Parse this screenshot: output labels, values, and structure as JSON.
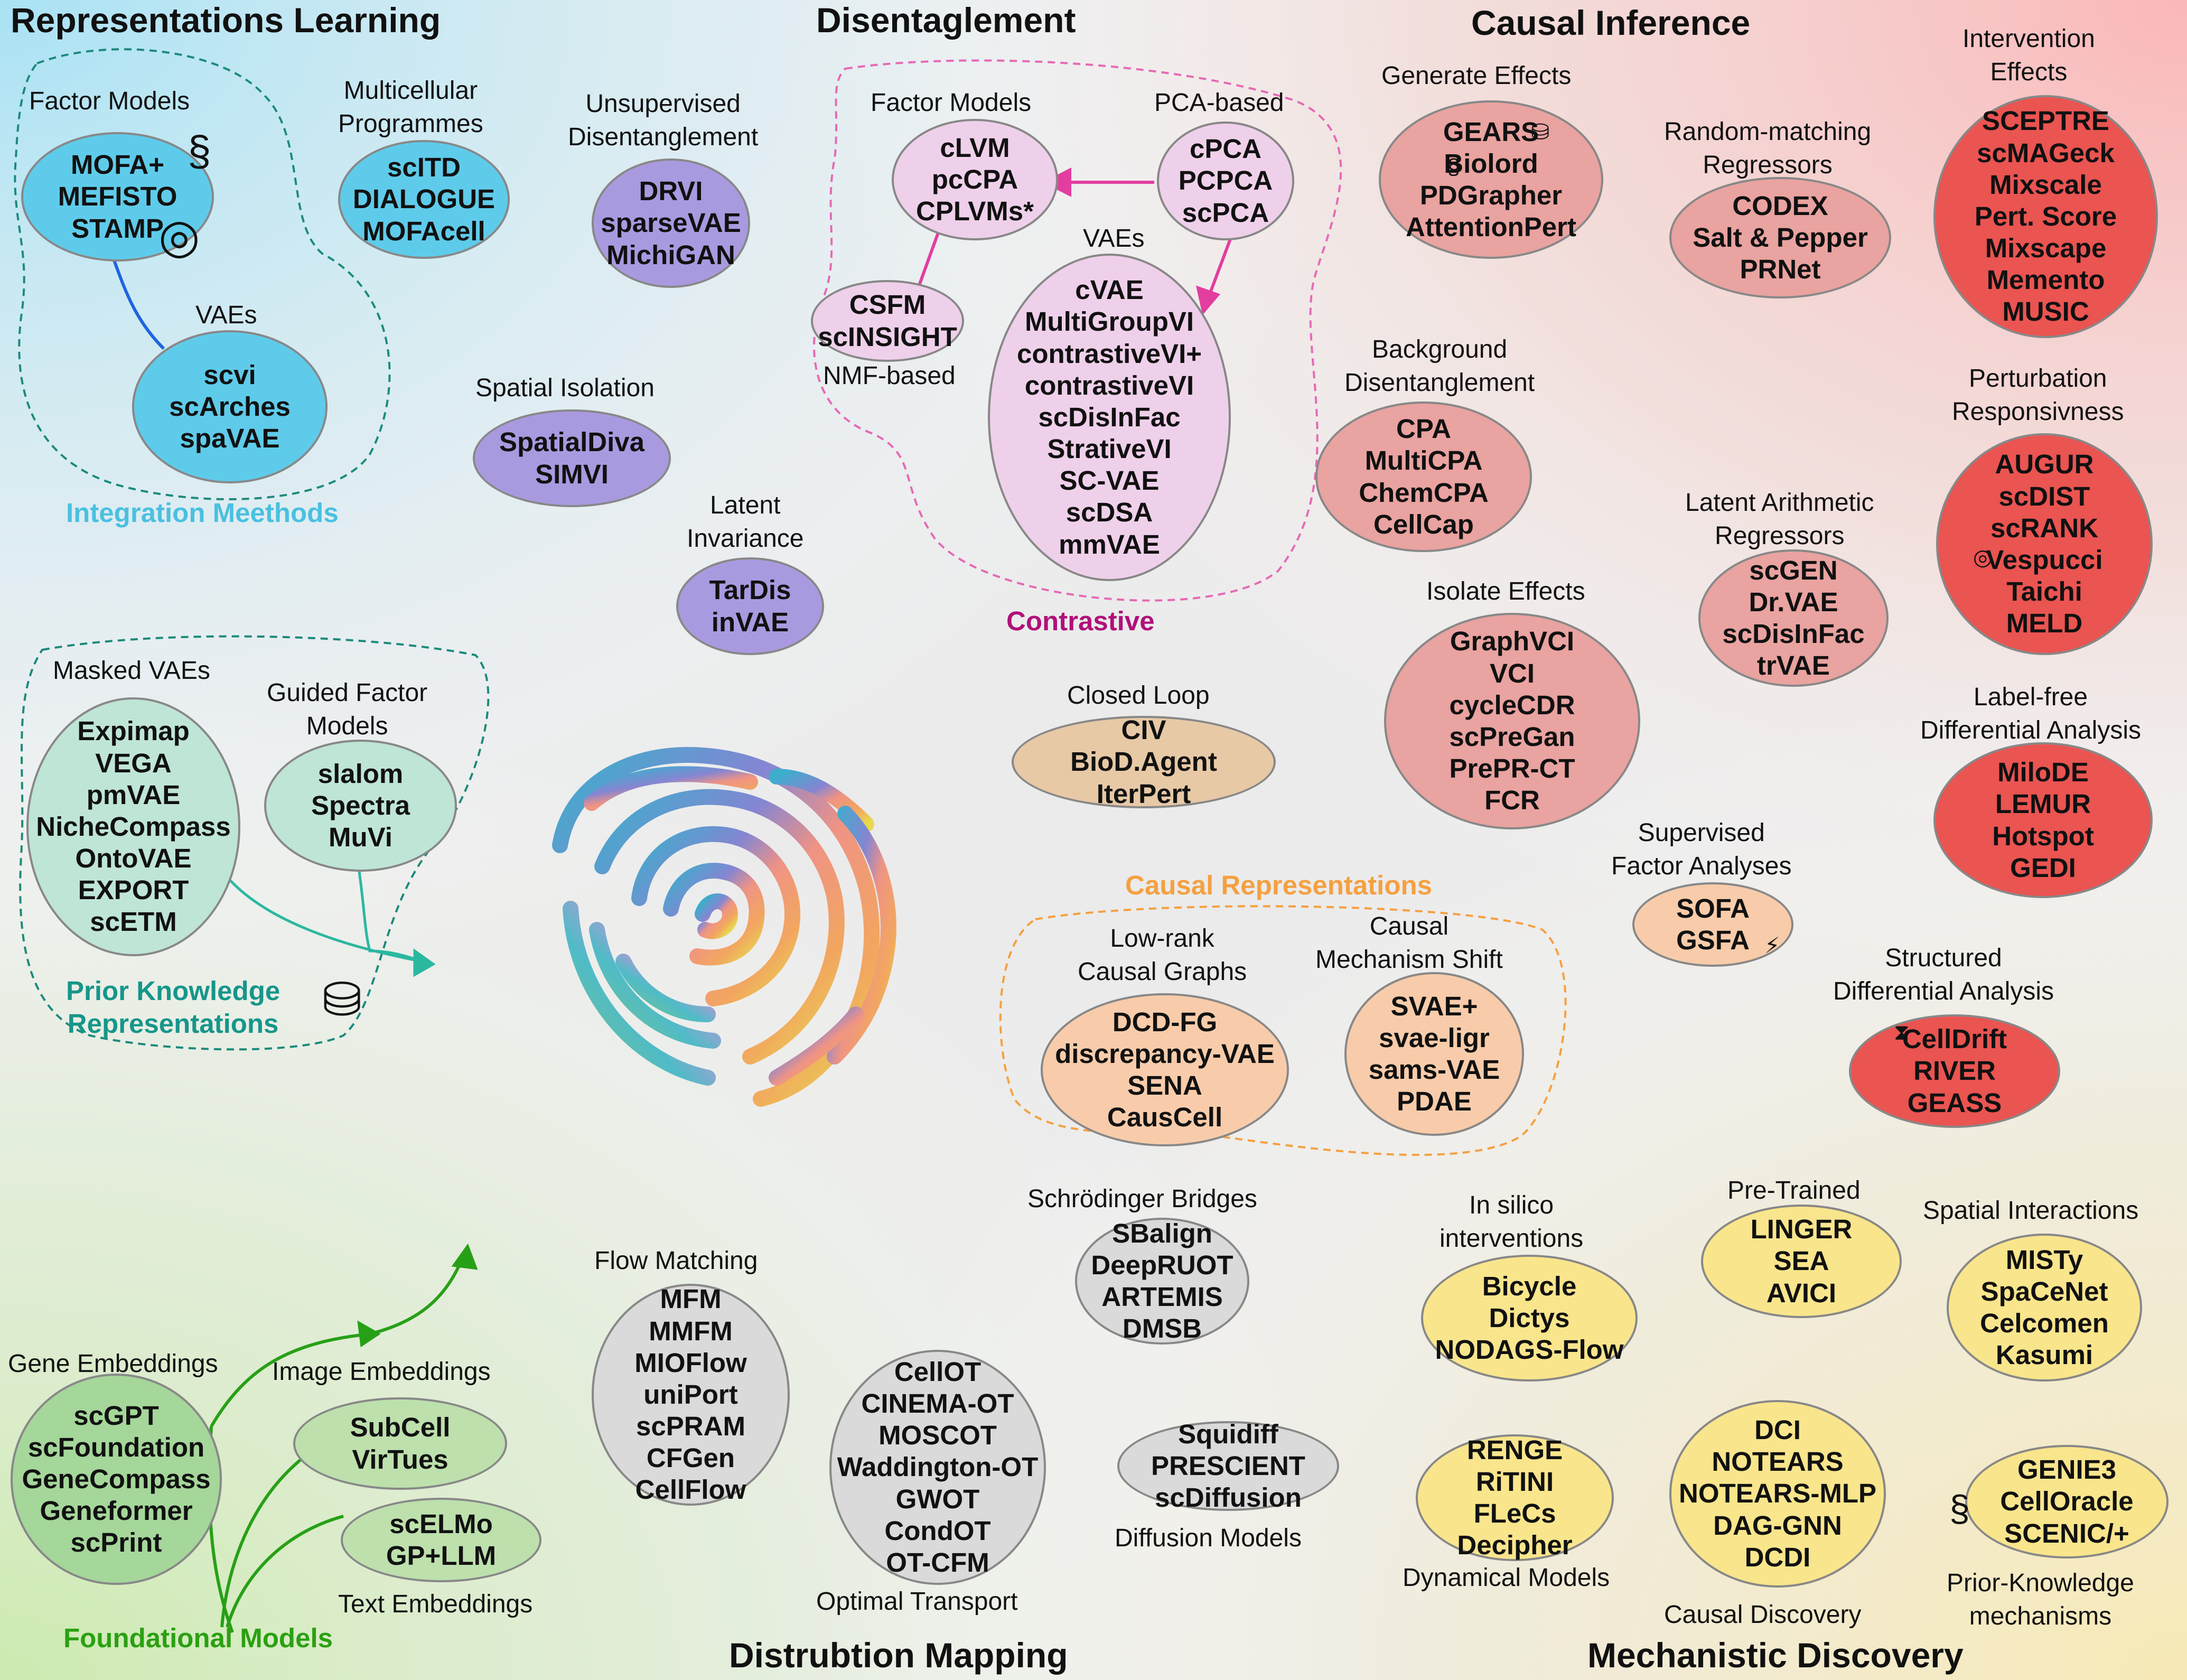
{
  "colors": {
    "rep_fill": "#5fcbea",
    "dis_fill": "#a99ae0",
    "con_fill": "#efd0ea",
    "causal_fill": "#e9a3a0",
    "red_fill": "#ea5451",
    "closed_fill": "#e7c9a6",
    "causalrep_fill": "#f8ccaa",
    "mech_fill": "#f9e58c",
    "prior_fill": "#bfe5d6",
    "found_fill": "#a5d69a",
    "dist_fill": "#dadada",
    "contrastive_label": "#b0107a",
    "integration_label": "#4ac0e0",
    "prior_label": "#16968a",
    "found_label": "#2aa012",
    "causalrep_label": "#f5a040",
    "arrow_pink": "#e23ea0",
    "arrow_blue": "#1f64e0",
    "arrow_teal": "#2bb8a0",
    "arrow_green": "#27a017"
  },
  "icons": {
    "dna": "dna-icon",
    "pin": "location-pin-icon",
    "db": "database-icon",
    "bolt": "lightning-icon",
    "hourglass": "hourglass-icon"
  },
  "sections": {
    "rep": "Representations Learning",
    "dis": "Disentaglement",
    "ci": "Causal Inference",
    "dm": "Distrubtion Mapping",
    "md": "Mechanistic Discovery"
  },
  "group_labels": {
    "integration": "Integration Meethods",
    "contrastive": "Contrastive",
    "causal_rep": "Causal Representations",
    "prior_line1": "Prior Knowledge",
    "prior_line2": "Representations",
    "foundational": "Foundational Models"
  },
  "labels": {
    "factor_models_rep": "Factor Models",
    "vaes_rep": "VAEs",
    "multicellular": [
      "Multicellular",
      "Programmes"
    ],
    "unsup": [
      "Unsupervised",
      "Disentanglement"
    ],
    "spatial_iso": "Spatial Isolation",
    "latent_inv": [
      "Latent",
      "Invariance"
    ],
    "factor_models_dis": "Factor Models",
    "pca_based": "PCA-based",
    "vaes_dis": "VAEs",
    "nmf_based": "NMF-based",
    "gen_effects": "Generate Effects",
    "random_match": [
      "Random-matching",
      "Regressors"
    ],
    "interv_effects": [
      "Intervention",
      "Effects"
    ],
    "bg_dis": [
      "Background",
      "Disentanglement"
    ],
    "pert_resp": [
      "Perturbation",
      "Responsivness"
    ],
    "latent_arith": [
      "Latent Arithmetic",
      "Regressors"
    ],
    "isolate": "Isolate Effects",
    "label_free": [
      "Label-free",
      "Differential Analysis"
    ],
    "closed_loop": "Closed Loop",
    "supervised": [
      "Supervised",
      "Factor Analyses"
    ],
    "low_rank": [
      "Low-rank",
      "Causal Graphs"
    ],
    "mech_shift": [
      "Causal",
      "Mechanism Shift"
    ],
    "structured": [
      "Structured",
      "Differential Analysis"
    ],
    "masked": "Masked VAEs",
    "guided": [
      "Guided Factor",
      "Models"
    ],
    "schrod": "Schrödinger Bridges",
    "flow": "Flow Matching",
    "insilico": [
      "In silico",
      "interventions"
    ],
    "pretrained": "Pre-Trained",
    "spatial_int": "Spatial Interactions",
    "gene_emb": "Gene Embeddings",
    "image_emb": "Image Embeddings",
    "text_emb": "Text Embeddings",
    "diffusion": "Diffusion Models",
    "optimal": "Optimal Transport",
    "dynamical": "Dynamical Models",
    "causal_disc": "Causal Discovery",
    "prior_mech": [
      "Prior-Knowledge",
      "mechanisms"
    ]
  },
  "ellipses": {
    "mofa": [
      "MOFA+",
      "MEFISTO",
      "STAMP"
    ],
    "scvi": [
      "scvi",
      "scArches",
      "spaVAE"
    ],
    "scitd": [
      "scITD",
      "DIALOGUE",
      "MOFAcell"
    ],
    "drvi": [
      "DRVI",
      "sparseVAE",
      "MichiGAN"
    ],
    "spatialdiva": [
      "SpatialDiva",
      "SIMVI"
    ],
    "tardis": [
      "TarDis",
      "inVAE"
    ],
    "clvm": [
      "cLVM",
      "pcCPA",
      "CPLVMs*"
    ],
    "cpca": [
      "cPCA",
      "PCPCA",
      "scPCA"
    ],
    "csfm": [
      "CSFM",
      "scINSIGHT"
    ],
    "cvae": [
      "cVAE",
      "MultiGroupVI",
      "contrastiveVI+",
      "contrastiveVI",
      "scDisInFac",
      "StrativeVI",
      "SC-VAE",
      "scDSA",
      "mmVAE"
    ],
    "gears": [
      "GEARS",
      "Biolord",
      "PDGrapher",
      "AttentionPert"
    ],
    "codex": [
      "CODEX",
      "Salt & Pepper",
      "PRNet"
    ],
    "sceptre": [
      "SCEPTRE",
      "scMAGeck",
      "Mixscale",
      "Pert. Score",
      "Mixscape",
      "Memento",
      "MUSIC"
    ],
    "cpa": [
      "CPA",
      "MultiCPA",
      "ChemCPA",
      "CellCap"
    ],
    "augur": [
      "AUGUR",
      "scDIST",
      "scRANK",
      "Vespucci",
      "Taichi",
      "MELD"
    ],
    "scgen": [
      "scGEN",
      "Dr.VAE",
      "scDisInFac",
      "trVAE"
    ],
    "graphvci": [
      "GraphVCI",
      "VCI",
      "cycleCDR",
      "scPreGan",
      "PrePR-CT",
      "FCR"
    ],
    "milode": [
      "MiloDE",
      "LEMUR",
      "Hotspot",
      "GEDI"
    ],
    "civ": [
      "CIV",
      "BioD.Agent",
      "IterPert"
    ],
    "sofa": [
      "SOFA",
      "GSFA"
    ],
    "dcdfg": [
      "DCD-FG",
      "discrepancy-VAE",
      "SENA",
      "CausCell"
    ],
    "svae": [
      "SVAE+",
      "svae-ligr",
      "sams-VAE",
      "PDAE"
    ],
    "celldrift": [
      "CellDrift",
      "RIVER",
      "GEASS"
    ],
    "expimap": [
      "Expimap",
      "VEGA",
      "pmVAE",
      "NicheCompass",
      "OntoVAE",
      "EXPORT",
      "scETM"
    ],
    "slalom": [
      "slalom",
      "Spectra",
      "MuVi"
    ],
    "sbalign": [
      "SBalign",
      "DeepRUOT",
      "ARTEMIS",
      "DMSB"
    ],
    "mfm": [
      "MFM",
      "MMFM",
      "MIOFlow",
      "uniPort",
      "scPRAM",
      "CFGen",
      "CellFlow"
    ],
    "bicycle": [
      "Bicycle",
      "Dictys",
      "NODAGS-Flow"
    ],
    "linger": [
      "LINGER",
      "SEA",
      "AVICI"
    ],
    "misty": [
      "MISTy",
      "SpaCeNet",
      "Celcomen",
      "Kasumi"
    ],
    "scgpt": [
      "scGPT",
      "scFoundation",
      "GeneCompass",
      "Geneformer",
      "scPrint"
    ],
    "subcell": [
      "SubCell",
      "VirTues"
    ],
    "scelmo": [
      "scELMo",
      "GP+LLM"
    ],
    "squidiff": [
      "Squidiff",
      "PRESCIENT",
      "scDiffusion"
    ],
    "cellot": [
      "CellOT",
      "CINEMA-OT",
      "MOSCOT",
      "Waddington-OT",
      "GWOT",
      "CondOT",
      "OT-CFM"
    ],
    "renge": [
      "RENGE",
      "RiTINI",
      "FLeCs",
      "Decipher"
    ],
    "dci": [
      "DCI",
      "NOTEARS",
      "NOTEARS-MLP",
      "DAG-GNN",
      "DCDI"
    ],
    "genie3": [
      "GENIE3",
      "CellOracle",
      "SCENIC/+"
    ]
  }
}
